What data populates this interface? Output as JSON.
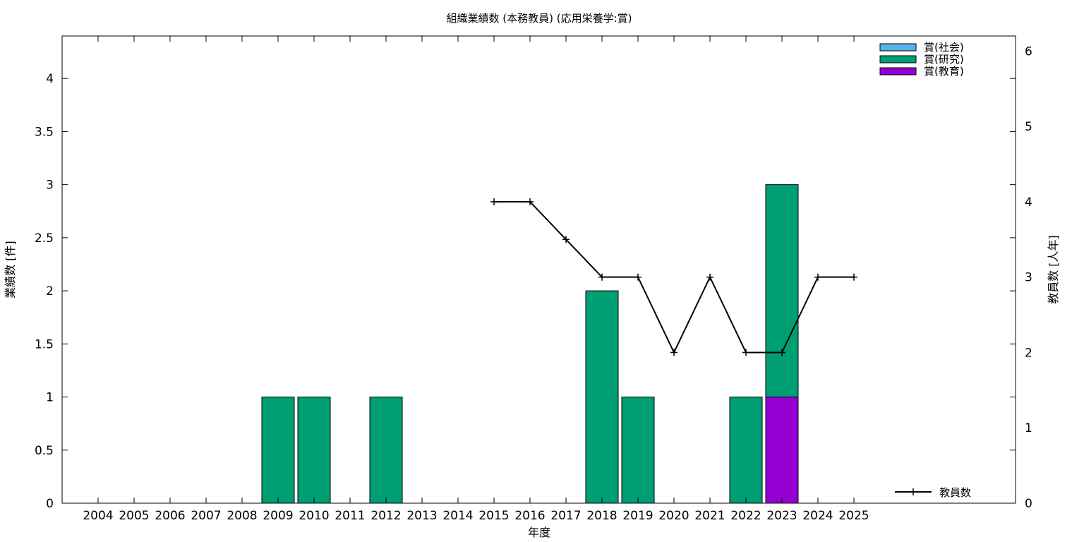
{
  "chart_data": {
    "type": "bar",
    "title": "組織業績数 (本務教員) (応用栄養学:賞)",
    "xlabel": "年度",
    "ylabel": "業績数 [件]",
    "y2label": "教員数 [人年]",
    "categories": [
      "2004",
      "2005",
      "2006",
      "2007",
      "2008",
      "2009",
      "2010",
      "2011",
      "2012",
      "2013",
      "2014",
      "2015",
      "2016",
      "2017",
      "2018",
      "2019",
      "2020",
      "2021",
      "2022",
      "2023",
      "2024",
      "2025"
    ],
    "ylim": [
      0,
      4.4
    ],
    "y_ticks": [
      "0",
      "0.5",
      "1",
      "1.5",
      "2",
      "2.5",
      "3",
      "3.5",
      "4"
    ],
    "y2lim": [
      0,
      6.2
    ],
    "y2_ticks": [
      "0",
      "1",
      "2",
      "3",
      "4",
      "5",
      "6"
    ],
    "stacked": true,
    "series": [
      {
        "name": "賞(教育)",
        "color": "#9400d3",
        "values": [
          0,
          0,
          0,
          0,
          0,
          0,
          0,
          0,
          0,
          0,
          0,
          0,
          0,
          0,
          0,
          0,
          0,
          0,
          0,
          1,
          0,
          0
        ]
      },
      {
        "name": "賞(研究)",
        "color": "#009e73",
        "values": [
          0,
          0,
          0,
          0,
          0,
          1,
          1,
          0,
          1,
          0,
          0,
          0,
          0,
          0,
          2,
          1,
          0,
          0,
          1,
          2,
          0,
          0
        ]
      },
      {
        "name": "賞(社会)",
        "color": "#56b4e9",
        "values": [
          0,
          0,
          0,
          0,
          0,
          0,
          0,
          0,
          0,
          0,
          0,
          0,
          0,
          0,
          0,
          0,
          0,
          0,
          0,
          0,
          0,
          0
        ]
      }
    ],
    "legend_order": [
      "賞(社会)",
      "賞(研究)",
      "賞(教育)"
    ],
    "legend_position": "top-right",
    "line_series": {
      "name": "教員数",
      "axis": "y2",
      "color": "#000000",
      "points": [
        {
          "x": "2015",
          "y": 4
        },
        {
          "x": "2016",
          "y": 4
        },
        {
          "x": "2017",
          "y": 3.5
        },
        {
          "x": "2018",
          "y": 3
        },
        {
          "x": "2019",
          "y": 3
        },
        {
          "x": "2020",
          "y": 2
        },
        {
          "x": "2021",
          "y": 3
        },
        {
          "x": "2022",
          "y": 2
        },
        {
          "x": "2023",
          "y": 2
        },
        {
          "x": "2024",
          "y": 3
        },
        {
          "x": "2025",
          "y": 3
        }
      ]
    },
    "line_legend_position": "bottom-right",
    "grid": false
  }
}
